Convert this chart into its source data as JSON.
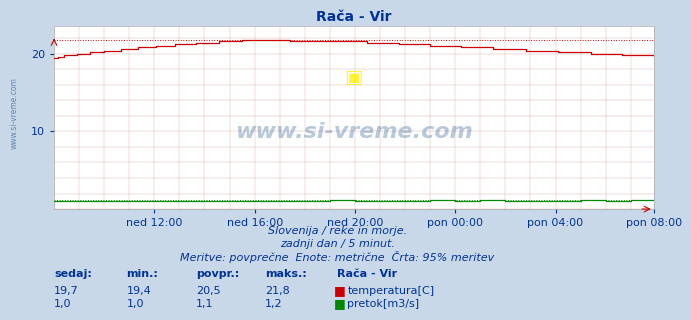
{
  "title": "Rača - Vir",
  "background_color": "#c8d8e8",
  "plot_bg_color": "#ffffff",
  "grid_color_v": "#cc8888",
  "grid_color_h": "#cc8888",
  "xlabel": "",
  "ylabel": "",
  "xlim": [
    0,
    287
  ],
  "ylim": [
    0,
    23.5
  ],
  "yticks": [
    10,
    20
  ],
  "temp_color": "#cc0000",
  "flow_color": "#008800",
  "temp_max": 21.8,
  "flow_max": 1.2,
  "temp_min": 19.4,
  "flow_min": 1.0,
  "temp_avg": 20.5,
  "flow_avg": 1.1,
  "temp_now": 19.7,
  "flow_now": 1.0,
  "xtick_labels": [
    "ned 12:00",
    "ned 16:00",
    "ned 20:00",
    "pon 00:00",
    "pon 04:00",
    "pon 08:00"
  ],
  "xtick_positions": [
    48,
    96,
    144,
    192,
    240,
    287
  ],
  "subtitle1": "Slovenija / reke in morje.",
  "subtitle2": "zadnji dan / 5 minut.",
  "subtitle3": "Meritve: povprečne  Enote: metrične  Črta: 95% meritev",
  "legend_title": "Rača - Vir",
  "legend_temp_label": "temperatura[C]",
  "legend_flow_label": "pretok[m3/s]",
  "watermark": "www.si-vreme.com",
  "text_color": "#003399",
  "title_color": "#003399",
  "font_size": 8,
  "title_font_size": 10,
  "left_label": "www.si-vreme.com"
}
